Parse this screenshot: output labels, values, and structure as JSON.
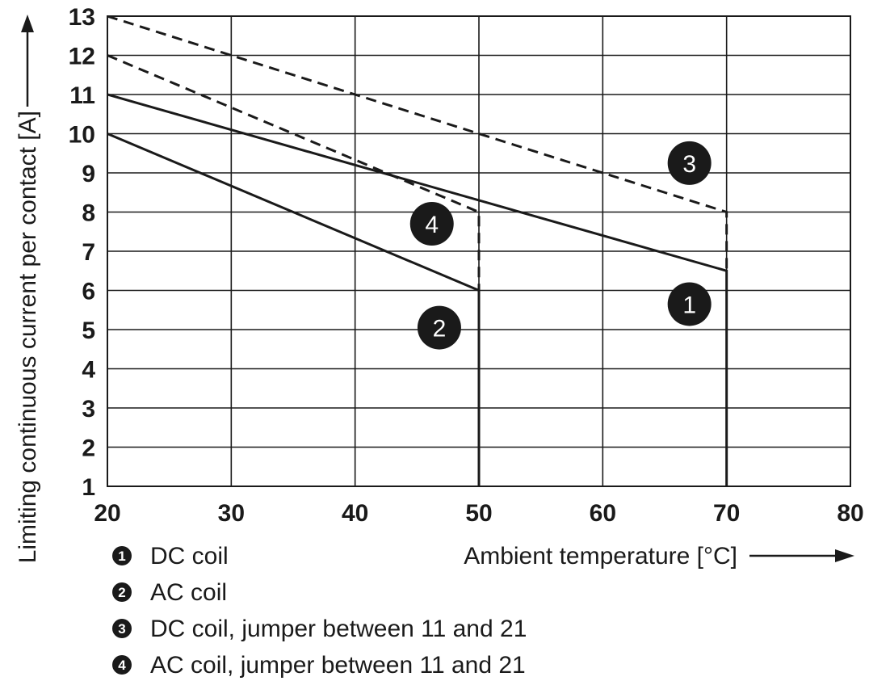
{
  "chart_data": {
    "type": "line",
    "xlabel": "Ambient temperature [°C]",
    "ylabel": "Limiting continuous current per contact [A]",
    "xlim": [
      20,
      80
    ],
    "ylim": [
      1,
      13
    ],
    "x_ticks": [
      "20",
      "30",
      "40",
      "50",
      "60",
      "70",
      "80"
    ],
    "y_ticks": [
      "1",
      "2",
      "3",
      "4",
      "5",
      "6",
      "7",
      "8",
      "9",
      "10",
      "11",
      "12",
      "13"
    ],
    "grid": true,
    "series": [
      {
        "marker": "1",
        "name": "DC coil",
        "style": "solid",
        "x": [
          20,
          70,
          70
        ],
        "y": [
          11,
          6.5,
          1
        ]
      },
      {
        "marker": "2",
        "name": "AC coil",
        "style": "solid",
        "x": [
          20,
          50,
          50
        ],
        "y": [
          10,
          6,
          1
        ]
      },
      {
        "marker": "3",
        "name": "DC coil, jumper between 11 and 21",
        "style": "dashed",
        "x": [
          20,
          70,
          70
        ],
        "y": [
          13,
          8,
          6.5
        ]
      },
      {
        "marker": "4",
        "name": "AC coil, jumper between 11 and 21",
        "style": "dashed",
        "x": [
          20,
          50,
          50
        ],
        "y": [
          12,
          8,
          6
        ]
      }
    ],
    "annotations": [
      {
        "text": "3",
        "x": 67,
        "y": 9.25
      },
      {
        "text": "4",
        "x": 46.2,
        "y": 7.7
      },
      {
        "text": "1",
        "x": 67,
        "y": 5.65
      },
      {
        "text": "2",
        "x": 46.8,
        "y": 5.05
      }
    ]
  },
  "legend": [
    {
      "marker": "1",
      "label": "DC coil"
    },
    {
      "marker": "2",
      "label": "AC coil"
    },
    {
      "marker": "3",
      "label": "DC coil, jumper between 11 and 21"
    },
    {
      "marker": "4",
      "label": "AC coil, jumper between 11 and 21"
    }
  ]
}
